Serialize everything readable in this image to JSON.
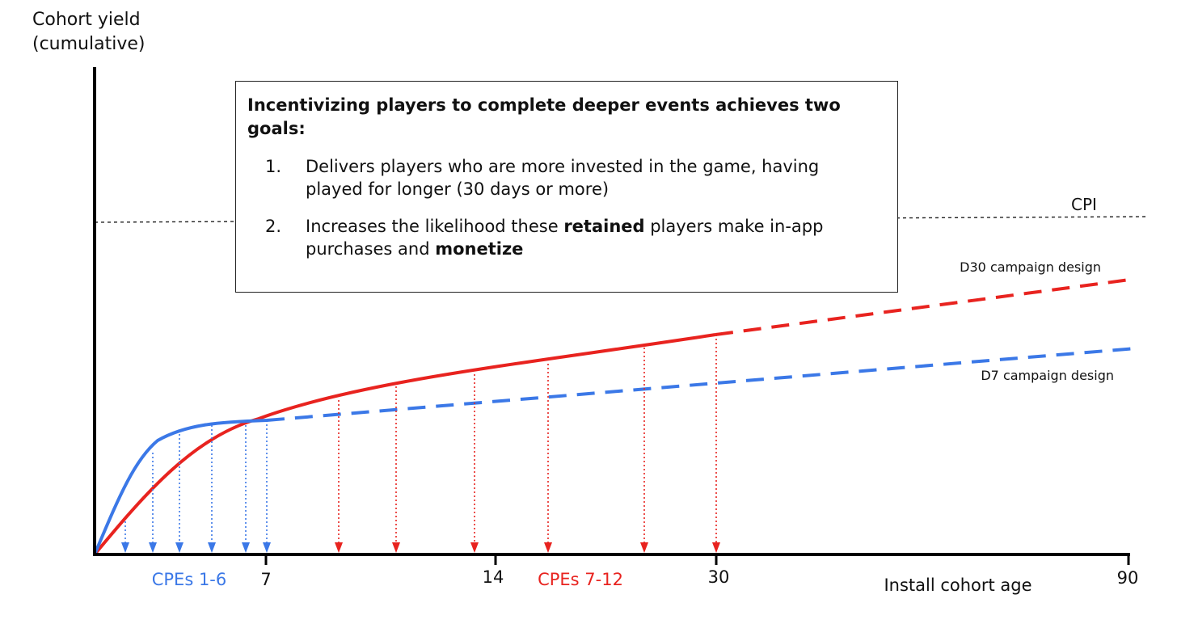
{
  "ylabel_lines": [
    "Cohort yield",
    "(cumulative)"
  ],
  "callout": {
    "title": "Incentivizing players to complete deeper events achieves two goals:",
    "items": [
      {
        "num": "1.",
        "segments": [
          {
            "text": "Delivers players who are more invested in the game, having played for longer (30 days or more)",
            "bold": false
          }
        ]
      },
      {
        "num": "2.",
        "segments": [
          {
            "text": "Increases the likelihood these ",
            "bold": false
          },
          {
            "text": "retained",
            "bold": true
          },
          {
            "text": " players make in-app purchases and ",
            "bold": false
          },
          {
            "text": "monetize",
            "bold": true
          }
        ]
      }
    ]
  },
  "chart_data": {
    "type": "line",
    "ylabel": "Cohort yield (cumulative)",
    "xlabel": "Install cohort age",
    "x_ticks": [
      "7",
      "14",
      "30",
      "90"
    ],
    "cpi_label": "CPI",
    "series": [
      {
        "name": "D7 campaign design",
        "color": "#3b78e7",
        "style": "solid until day 7, dashed after",
        "events_label": "CPEs 1-6",
        "event_count": 6
      },
      {
        "name": "D30 campaign design",
        "color": "#e8231f",
        "style": "solid until day 30, dashed after",
        "events_label": "CPEs 7-12",
        "event_count": 6
      }
    ],
    "colors": {
      "blue": "#3b78e7",
      "red": "#e8231f",
      "axis": "#000000",
      "cpi_line": "#222222"
    }
  }
}
